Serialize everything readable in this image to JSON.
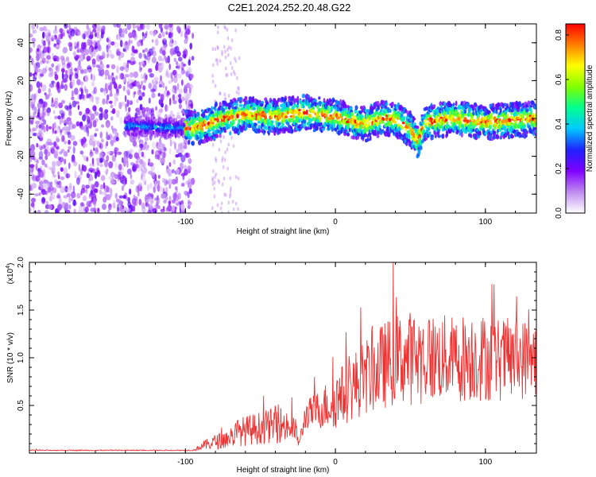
{
  "title": "C2E1.2024.252.20.48.G22",
  "chart_data": [
    {
      "type": "heatmap",
      "xlabel": "Height of straight line (km)",
      "ylabel": "Frequency (Hz)",
      "xlim": [
        -204,
        134
      ],
      "ylim": [
        -50,
        50
      ],
      "xticks": [
        -100,
        0,
        100
      ],
      "xtick_labels": [
        "-100",
        "0",
        "100"
      ],
      "yticks": [
        -40,
        -20,
        0,
        20,
        40
      ],
      "ytick_labels": [
        "-40",
        "-20",
        "0",
        "20",
        "40"
      ],
      "colorbar": {
        "label": "Normalized spectral amplitude",
        "range": [
          0,
          0.85
        ],
        "ticks": [
          0.0,
          0.2,
          0.4,
          0.6,
          0.8
        ],
        "tick_labels": [
          "0.0",
          "0.2",
          "0.4",
          "0.6",
          "0.8"
        ],
        "colors": [
          "#ffffff",
          "#c08cf0",
          "#7f00ff",
          "#2020ff",
          "#00c8ff",
          "#00ff90",
          "#80ff00",
          "#ffff00",
          "#ff8000",
          "#ff0000"
        ]
      },
      "ridge": {
        "x": [
          -130,
          -110,
          -95,
          -85,
          -75,
          -60,
          -40,
          -20,
          0,
          20,
          30,
          40,
          50,
          55,
          60,
          80,
          100,
          120,
          134
        ],
        "freq": [
          -4,
          -5,
          -5,
          -3,
          0,
          2,
          1,
          3,
          1,
          -3,
          0,
          0,
          -6,
          -12,
          -2,
          0,
          -2,
          -1,
          0
        ]
      },
      "noise_region_x": [
        -204,
        -95
      ],
      "grid": false
    },
    {
      "type": "line",
      "xlabel": "Height of straight line (km)",
      "ylabel": "SNR (10 * v/v)",
      "scale_note": "(x10",
      "scale_exp": "4",
      "xlim": [
        -204,
        134
      ],
      "ylim": [
        0,
        2.0
      ],
      "xticks": [
        -100,
        0,
        100
      ],
      "xtick_labels": [
        "-100",
        "0",
        "100"
      ],
      "yticks": [
        0.5,
        1.0,
        1.5,
        2.0
      ],
      "ytick_labels": [
        "0.5",
        "1.0",
        "1.5",
        "2.0"
      ],
      "color": "#ee3333",
      "envelope": {
        "x": [
          -204,
          -95,
          -88,
          -80,
          -72,
          -65,
          -45,
          -35,
          -27,
          -24,
          -20,
          -12,
          0,
          10,
          20,
          30,
          40,
          50,
          60,
          70,
          80,
          90,
          100,
          110,
          120,
          134
        ],
        "mean": [
          0.03,
          0.03,
          0.08,
          0.12,
          0.15,
          0.22,
          0.28,
          0.3,
          0.25,
          0.1,
          0.4,
          0.45,
          0.55,
          0.68,
          0.8,
          0.9,
          0.98,
          1.0,
          1.0,
          1.0,
          0.98,
          1.02,
          1.0,
          0.98,
          0.98,
          1.0
        ],
        "spread": [
          0.005,
          0.005,
          0.05,
          0.08,
          0.1,
          0.15,
          0.18,
          0.2,
          0.15,
          0.05,
          0.15,
          0.2,
          0.3,
          0.35,
          0.4,
          0.45,
          0.48,
          0.5,
          0.48,
          0.46,
          0.46,
          0.48,
          0.46,
          0.44,
          0.44,
          0.4
        ]
      },
      "grid": false
    }
  ]
}
